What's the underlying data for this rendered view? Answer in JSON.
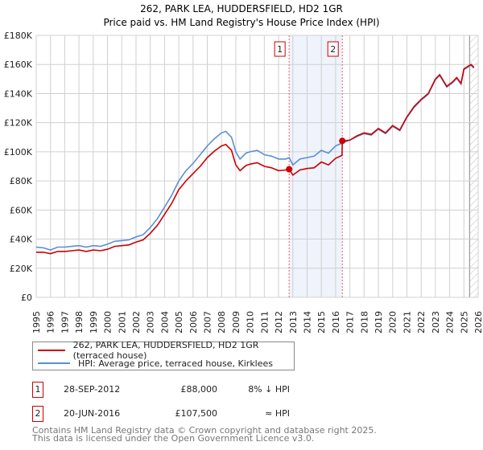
{
  "chart_data": {
    "type": "line",
    "title": "262, PARK LEA, HUDDERSFIELD, HD2 1GR",
    "subtitle": "Price paid vs. HM Land Registry's House Price Index (HPI)",
    "xlim": [
      1995,
      2026
    ],
    "ylim": [
      0,
      180000
    ],
    "y_ticks": [
      0,
      20000,
      40000,
      60000,
      80000,
      100000,
      120000,
      140000,
      160000,
      180000
    ],
    "y_tick_labels": [
      "£0",
      "£20K",
      "£40K",
      "£60K",
      "£80K",
      "£100K",
      "£120K",
      "£140K",
      "£160K",
      "£180K"
    ],
    "x_ticks": [
      "1995",
      "1996",
      "1997",
      "1998",
      "1999",
      "2000",
      "2001",
      "2002",
      "2003",
      "2004",
      "2005",
      "2006",
      "2007",
      "2008",
      "2009",
      "2010",
      "2011",
      "2012",
      "2013",
      "2014",
      "2015",
      "2016",
      "2017",
      "2018",
      "2019",
      "2020",
      "2021",
      "2022",
      "2023",
      "2024",
      "2025",
      "2026"
    ],
    "grid": true,
    "forecast_hatch_from": 2025.4,
    "shaded_range": [
      2012.74,
      2016.47
    ],
    "series": [
      {
        "name": "262, PARK LEA, HUDDERSFIELD, HD2 1GR (terraced house)",
        "color": "#cc0000",
        "x": [
          1995,
          1995.5,
          1996,
          1996.5,
          1997,
          1997.5,
          1998,
          1998.5,
          1999,
          1999.5,
          2000,
          2000.5,
          2001,
          2001.5,
          2002,
          2002.5,
          2003,
          2003.5,
          2004,
          2004.5,
          2005,
          2005.5,
          2006,
          2006.5,
          2007,
          2007.5,
          2008,
          2008.3,
          2008.7,
          2009,
          2009.3,
          2009.7,
          2010,
          2010.5,
          2011,
          2011.5,
          2012,
          2012.5,
          2012.74,
          2013,
          2013.5,
          2014,
          2014.5,
          2015,
          2015.5,
          2016,
          2016.45,
          2016.47,
          2017,
          2017.5,
          2018,
          2018.5,
          2019,
          2019.5,
          2020,
          2020.5,
          2021,
          2021.5,
          2022,
          2022.5,
          2023,
          2023.3,
          2023.8,
          2024.2,
          2024.5,
          2024.8,
          2025,
          2025.5,
          2025.7
        ],
        "y": [
          31000,
          31000,
          30000,
          31500,
          31500,
          32000,
          32500,
          31500,
          32500,
          32000,
          33000,
          35000,
          35500,
          36000,
          38000,
          39500,
          44000,
          49500,
          57000,
          64500,
          74000,
          80000,
          85000,
          90000,
          96000,
          100500,
          104000,
          105000,
          101000,
          91000,
          87000,
          90500,
          91500,
          92500,
          90000,
          89000,
          87000,
          87500,
          88000,
          84000,
          87500,
          88500,
          89000,
          93000,
          91000,
          95500,
          97500,
          107500,
          108000,
          111000,
          113000,
          112000,
          116000,
          113000,
          118000,
          115000,
          124000,
          131000,
          136000,
          140000,
          150000,
          153000,
          145000,
          148000,
          151000,
          147000,
          157000,
          160000,
          158000
        ]
      },
      {
        "name": "HPI: Average price, terraced house, Kirklees",
        "color": "#5b8fd4",
        "x": [
          1995,
          1995.5,
          1996,
          1996.5,
          1997,
          1997.5,
          1998,
          1998.5,
          1999,
          1999.5,
          2000,
          2000.5,
          2001,
          2001.5,
          2002,
          2002.5,
          2003,
          2003.5,
          2004,
          2004.5,
          2005,
          2005.5,
          2006,
          2006.5,
          2007,
          2007.5,
          2008,
          2008.3,
          2008.7,
          2009,
          2009.3,
          2009.7,
          2010,
          2010.5,
          2011,
          2011.5,
          2012,
          2012.5,
          2012.74,
          2013,
          2013.5,
          2014,
          2014.5,
          2015,
          2015.5,
          2016,
          2016.47,
          2017,
          2017.5,
          2018,
          2018.5,
          2019,
          2019.5,
          2020,
          2020.5,
          2021,
          2021.5,
          2022,
          2022.5,
          2023,
          2023.3,
          2023.8,
          2024.2,
          2024.5,
          2024.8,
          2025,
          2025.5,
          2025.7
        ],
        "y": [
          34500,
          34000,
          32500,
          34500,
          34500,
          35000,
          35500,
          34500,
          35500,
          35000,
          36500,
          38500,
          39000,
          39500,
          41500,
          43000,
          48000,
          54000,
          62000,
          70000,
          80000,
          87000,
          92000,
          98000,
          104000,
          109000,
          113000,
          114000,
          110000,
          100000,
          95000,
          99000,
          100000,
          101000,
          98000,
          97000,
          95000,
          95000,
          96000,
          91000,
          95000,
          96000,
          97000,
          101000,
          99000,
          104000,
          106000,
          108000,
          110500,
          112500,
          111500,
          115500,
          112500,
          117500,
          114500,
          123500,
          130500,
          135500,
          139500,
          149500,
          152500,
          144500,
          147500,
          150500,
          146500,
          156500,
          159500,
          157500
        ]
      }
    ],
    "sales": [
      {
        "label": "1",
        "x": 2012.74,
        "y": 88000
      },
      {
        "label": "2",
        "x": 2016.47,
        "y": 107500
      }
    ]
  },
  "legend": {
    "property": "262, PARK LEA, HUDDERSFIELD, HD2 1GR (terraced house)",
    "hpi": "HPI: Average price, terraced house, Kirklees"
  },
  "transactions": [
    {
      "num": "1",
      "date": "28-SEP-2012",
      "price": "£88,000",
      "relation": "8% ↓ HPI"
    },
    {
      "num": "2",
      "date": "20-JUN-2016",
      "price": "£107,500",
      "relation": "≈ HPI"
    }
  ],
  "footer": {
    "line1": "Contains HM Land Registry data © Crown copyright and database right 2025.",
    "line2": "This data is licensed under the Open Government Licence v3.0."
  }
}
